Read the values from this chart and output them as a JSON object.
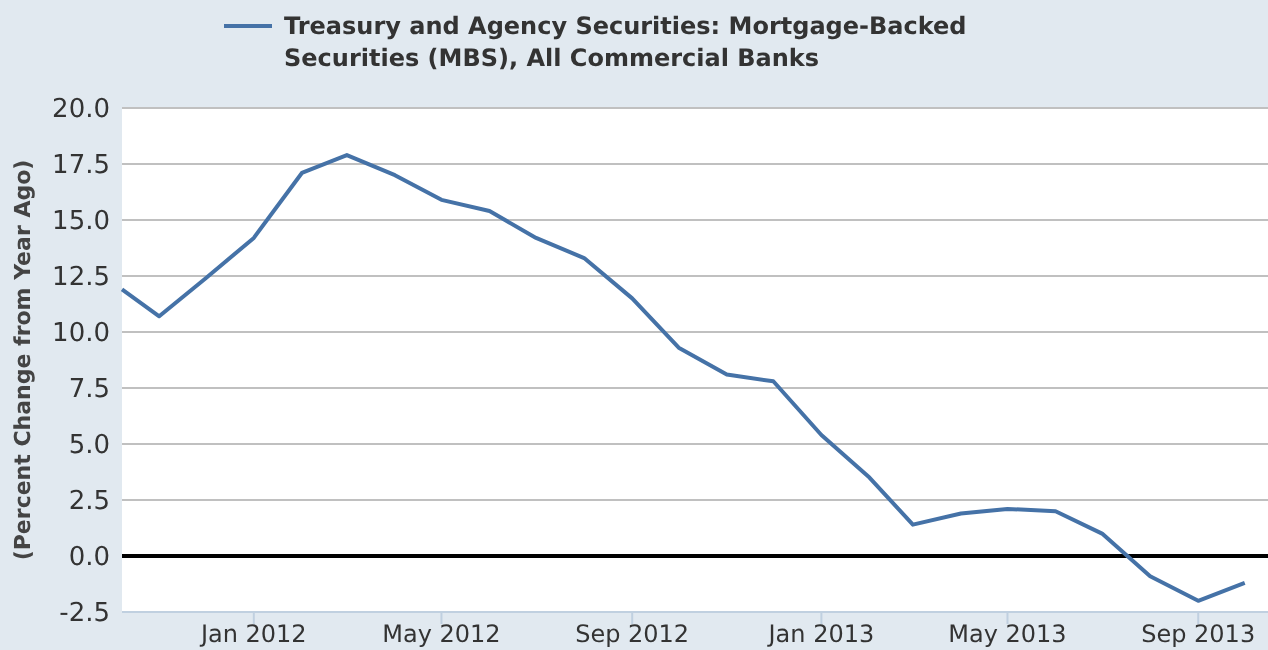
{
  "chart_data": {
    "type": "line",
    "ylabel": "(Percent Change from Year Ago)",
    "x": [
      "2011-10-08",
      "2011-11-01",
      "2011-12-01",
      "2012-01-01",
      "2012-02-01",
      "2012-03-01",
      "2012-04-01",
      "2012-05-01",
      "2012-06-01",
      "2012-07-01",
      "2012-08-01",
      "2012-09-01",
      "2012-10-01",
      "2012-11-01",
      "2012-12-01",
      "2013-01-01",
      "2013-02-01",
      "2013-03-01",
      "2013-04-01",
      "2013-05-01",
      "2013-06-01",
      "2013-07-01",
      "2013-08-01",
      "2013-09-01",
      "2013-10-01"
    ],
    "series": [
      {
        "name": "Treasury and Agency Securities: Mortgage-Backed Securities (MBS), All Commercial Banks",
        "color": "#4572a7",
        "values": [
          11.9,
          10.7,
          12.4,
          14.2,
          17.1,
          17.9,
          17.0,
          15.9,
          15.4,
          14.2,
          13.3,
          11.5,
          9.3,
          8.1,
          7.8,
          5.4,
          3.5,
          1.4,
          1.9,
          2.1,
          2.0,
          1.0,
          -0.9,
          -2.0,
          -1.2
        ]
      }
    ],
    "xlim": [
      "2011-10-08",
      "2013-10-16"
    ],
    "xticks": [
      {
        "value": "2012-01-01",
        "label": "Jan 2012"
      },
      {
        "value": "2012-05-01",
        "label": "May 2012"
      },
      {
        "value": "2012-09-01",
        "label": "Sep 2012"
      },
      {
        "value": "2013-01-01",
        "label": "Jan 2013"
      },
      {
        "value": "2013-05-01",
        "label": "May 2013"
      },
      {
        "value": "2013-09-01",
        "label": "Sep 2013"
      }
    ],
    "ylim": [
      -2.5,
      20
    ],
    "yticks": [
      {
        "value": -2.5,
        "label": "-2.5"
      },
      {
        "value": 0,
        "label": "0.0"
      },
      {
        "value": 2.5,
        "label": "2.5"
      },
      {
        "value": 5,
        "label": "5.0"
      },
      {
        "value": 7.5,
        "label": "7.5"
      },
      {
        "value": 10,
        "label": "10.0"
      },
      {
        "value": 12.5,
        "label": "12.5"
      },
      {
        "value": 15,
        "label": "15.0"
      },
      {
        "value": 17.5,
        "label": "17.5"
      },
      {
        "value": 20,
        "label": "20.0"
      }
    ],
    "ref_lines": [
      {
        "axis": "y",
        "value": 0,
        "color": "#000000"
      }
    ],
    "grid": "y",
    "legend": "top",
    "line_style": "solid",
    "marker": "none"
  }
}
